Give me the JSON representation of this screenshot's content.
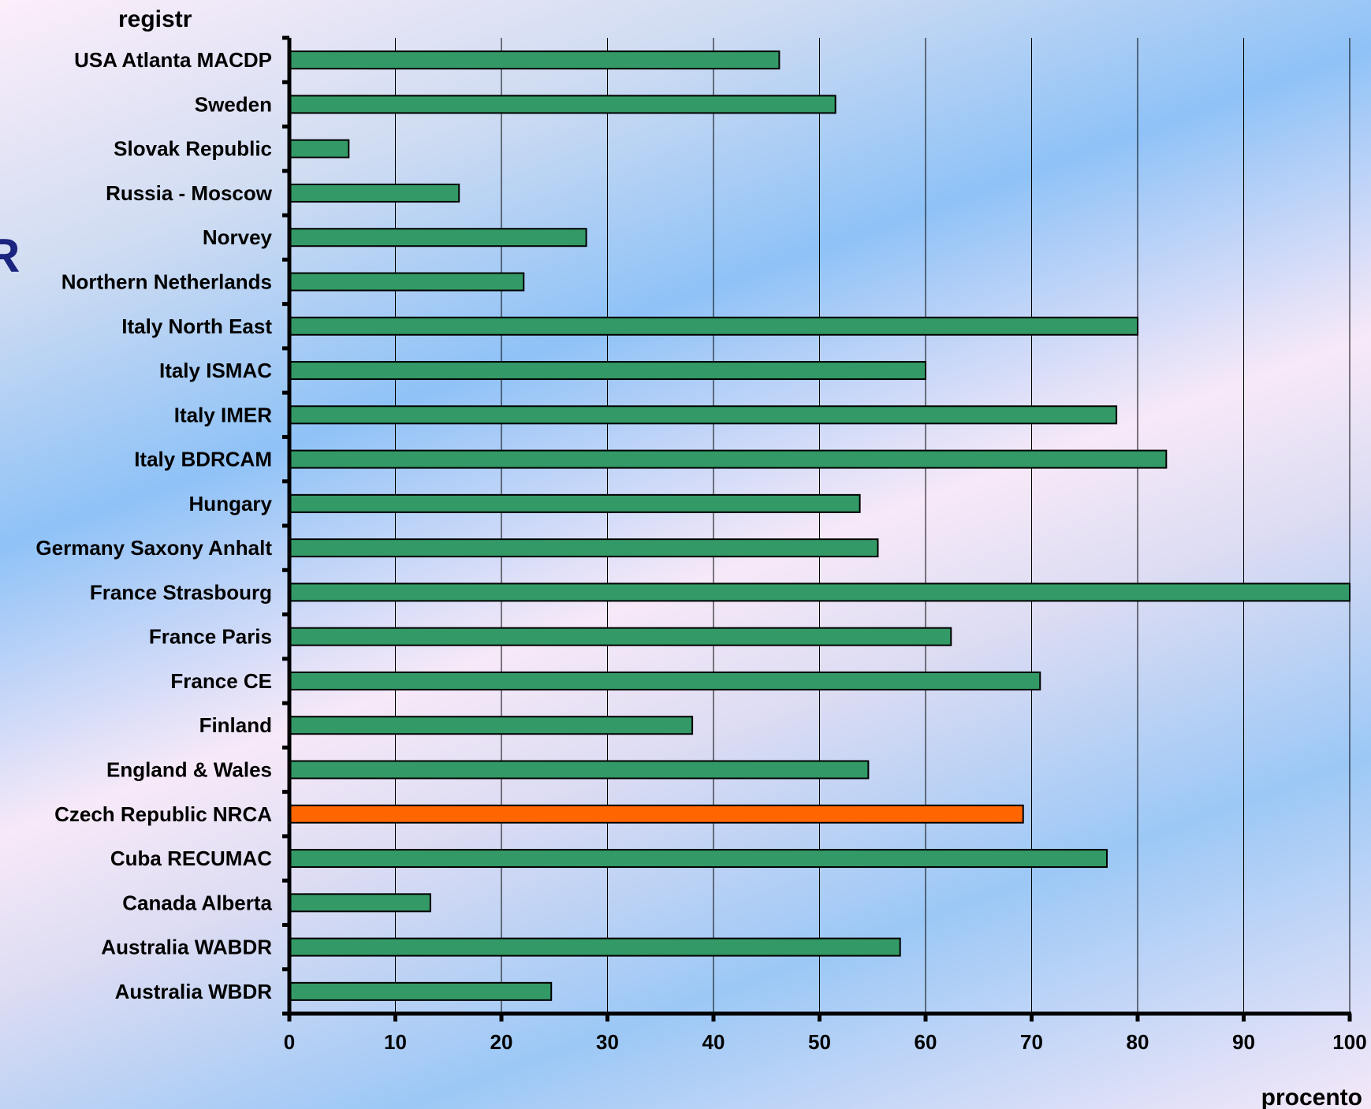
{
  "chart_data": {
    "type": "bar",
    "orientation": "horizontal",
    "y_axis_title": "registr",
    "x_axis_title": "procento",
    "xlim": [
      0,
      100
    ],
    "x_ticks": [
      0,
      10,
      20,
      30,
      40,
      50,
      60,
      70,
      80,
      90,
      100
    ],
    "grid": "vertical",
    "bar_color": "#339966",
    "highlight_color": "#ff6600",
    "edge_glyph": "R",
    "categories": [
      "USA Atlanta MACDP",
      "Sweden",
      "Slovak Republic",
      "Russia - Moscow",
      "Norvey",
      "Northern Netherlands",
      "Italy North East",
      "Italy ISMAC",
      "Italy IMER",
      "Italy BDRCAM",
      "Hungary",
      "Germany Saxony Anhalt",
      "France Strasbourg",
      "France Paris",
      "France CE",
      "Finland",
      "England & Wales",
      "Czech Republic NRCA",
      "Cuba RECUMAC",
      "Canada Alberta",
      "Australia WABDR",
      "Australia WBDR"
    ],
    "values": [
      46.2,
      51.5,
      5.6,
      16.0,
      28.0,
      22.1,
      80.0,
      60.0,
      78.0,
      82.7,
      53.8,
      55.5,
      100.0,
      62.4,
      70.8,
      38.0,
      54.6,
      69.2,
      77.1,
      13.3,
      57.6,
      24.7
    ],
    "highlight": "Czech Republic NRCA"
  }
}
